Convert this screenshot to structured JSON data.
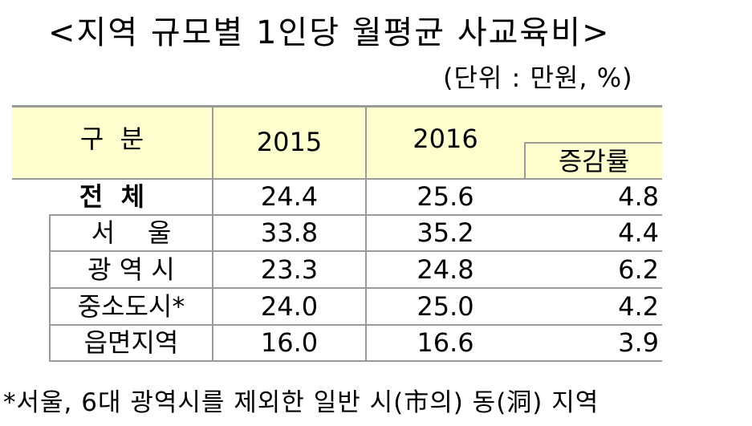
{
  "title": "<지역 규모별 1인당 월평균 사교육비>",
  "unit": "(단위 : 만원, %)",
  "table": {
    "header": {
      "category": "구  분",
      "year1": "2015",
      "year2": "2016",
      "change": "증감률"
    },
    "rows": [
      {
        "label": "전  체",
        "v2015": "24.4",
        "v2016": "25.6",
        "rate": "4.8"
      },
      {
        "label": "서    울",
        "v2015": "33.8",
        "v2016": "35.2",
        "rate": "4.4"
      },
      {
        "label": "광 역 시",
        "v2015": "23.3",
        "v2016": "24.8",
        "rate": "6.2"
      },
      {
        "label": "중소도시*",
        "v2015": "24.0",
        "v2016": "25.0",
        "rate": "4.2"
      },
      {
        "label": "읍면지역",
        "v2015": "16.0",
        "v2016": "16.6",
        "rate": "3.9"
      }
    ]
  },
  "footnote": "*서울, 6대 광역시를 제외한 일반 시(市의) 동(洞) 지역"
}
